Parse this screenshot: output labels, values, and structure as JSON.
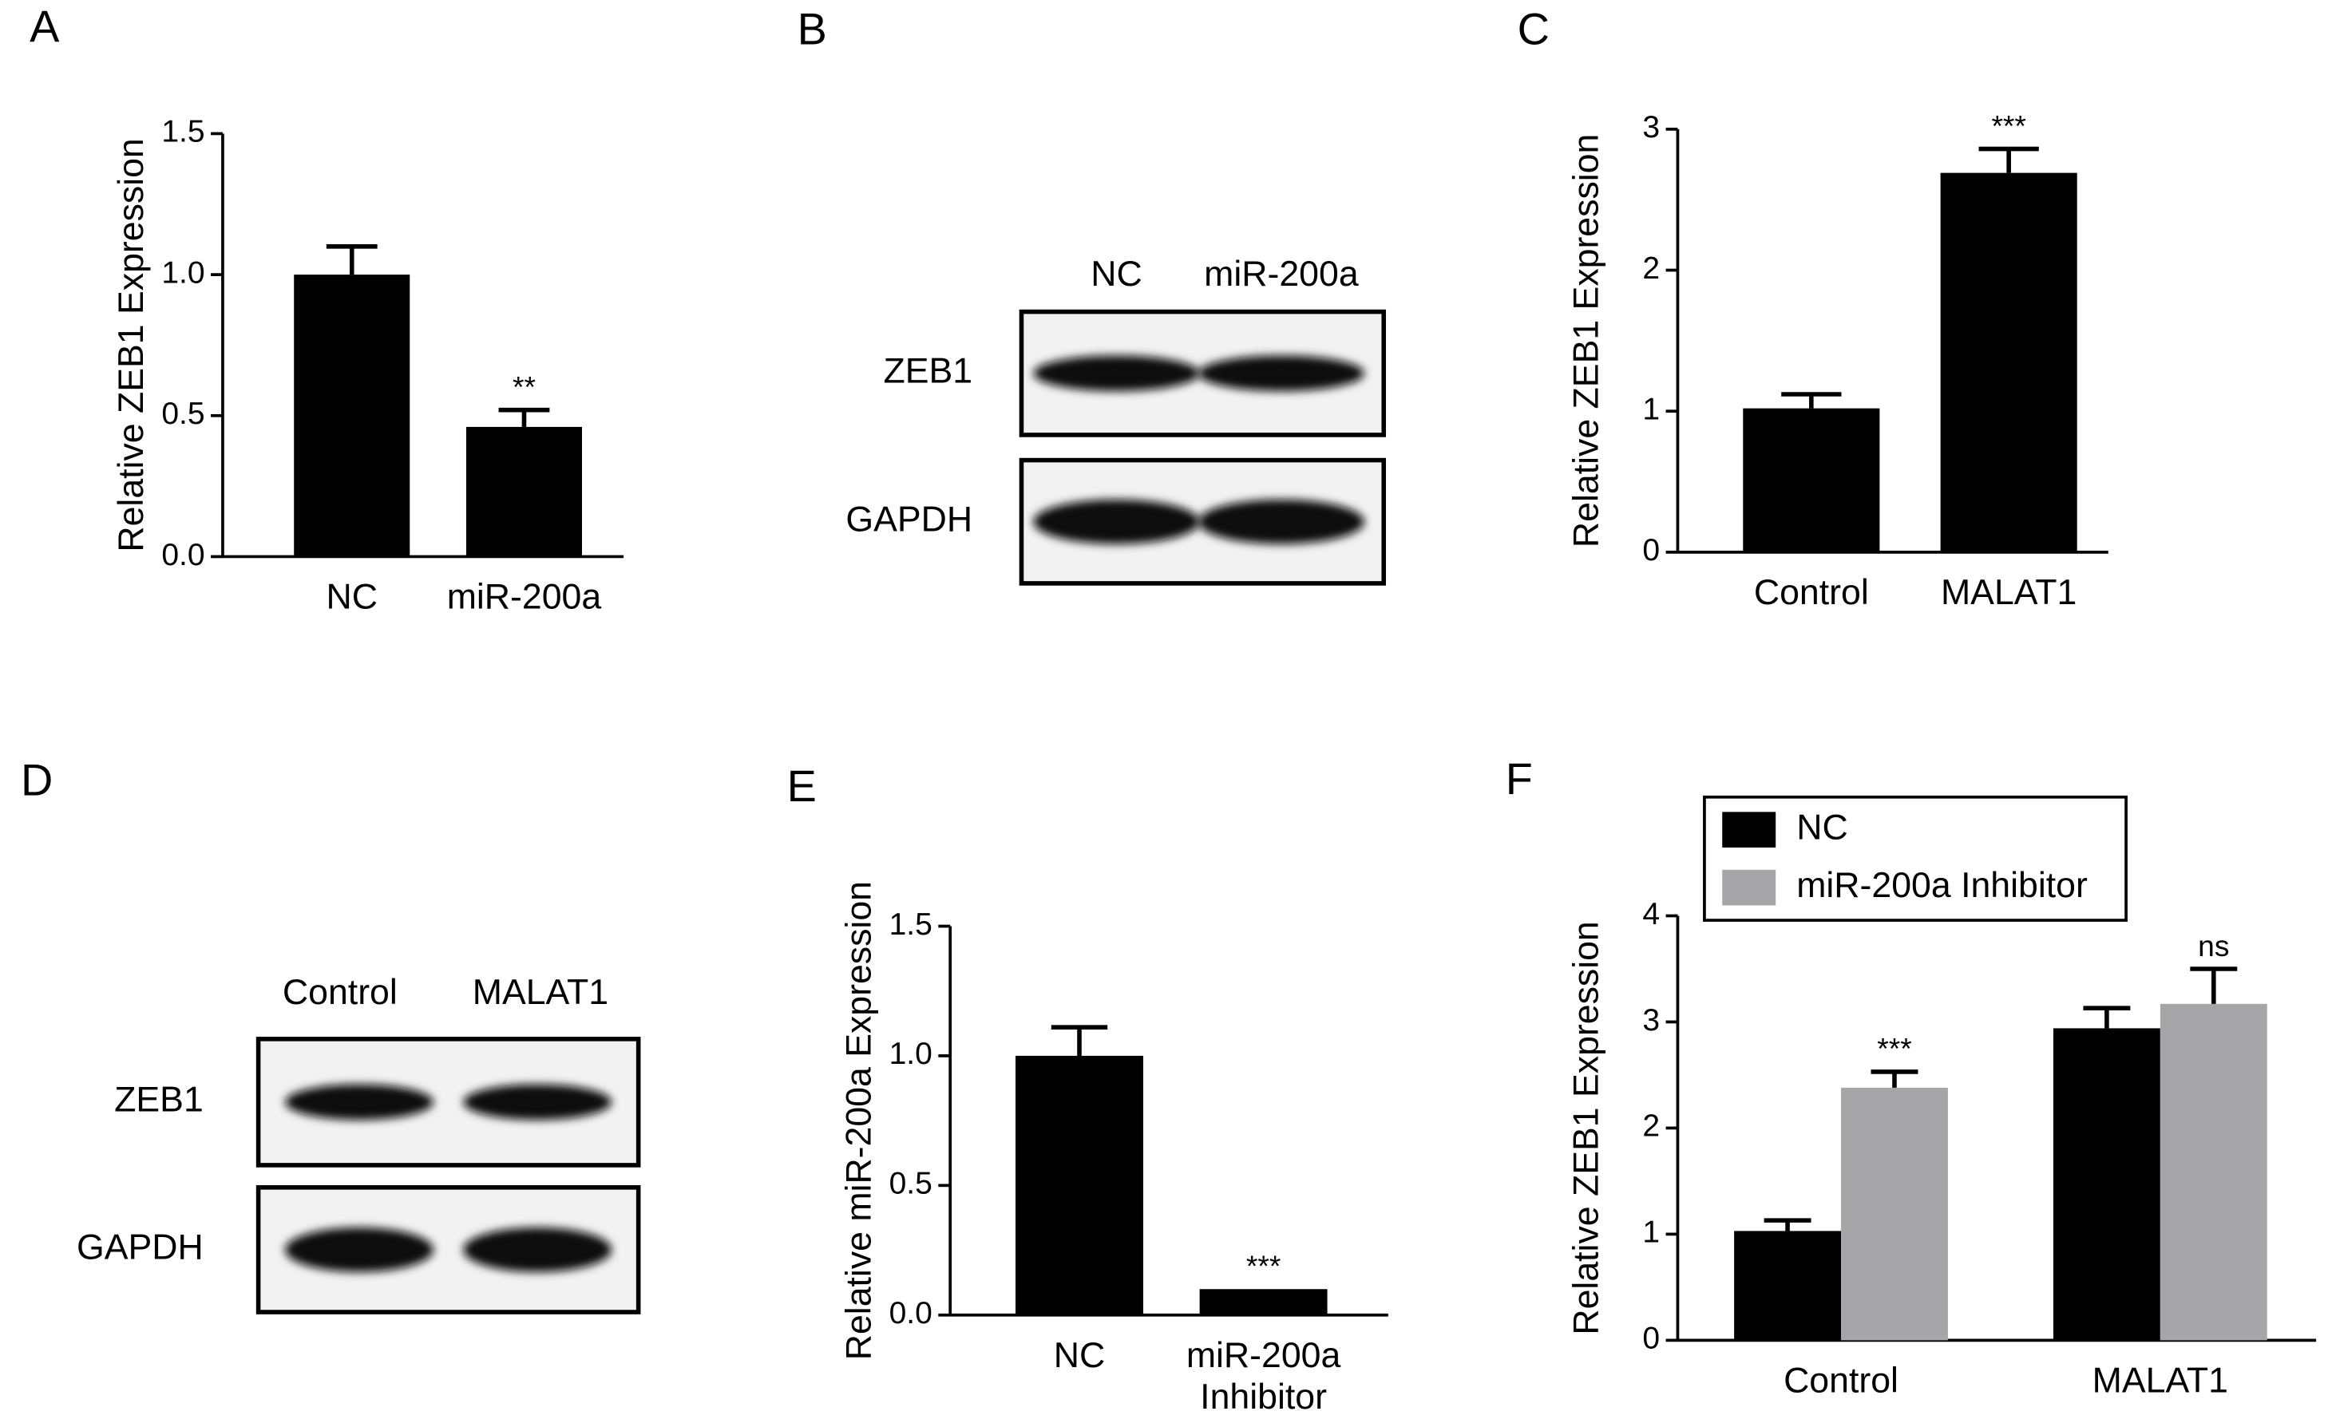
{
  "chart_data": [
    {
      "type": "bar",
      "panel": "A",
      "ylabel": "Relative ZEB1 Expression",
      "categories": [
        "NC",
        "miR-200a"
      ],
      "values": [
        1.0,
        0.46
      ],
      "errors": [
        0.1,
        0.06
      ],
      "annotations": [
        null,
        "**"
      ],
      "color": "#000000",
      "ylim": [
        0,
        1.5
      ],
      "yticks": [
        {
          "value": 0,
          "label": "0.0"
        },
        0.5,
        {
          "value": 1,
          "label": "1.0"
        },
        1.5
      ]
    },
    {
      "type": "blot",
      "panel": "B",
      "lanes": [
        "NC",
        "miR-200a"
      ],
      "rows": [
        "ZEB1",
        "GAPDH"
      ]
    },
    {
      "type": "bar",
      "panel": "C",
      "ylabel": "Relative ZEB1 Expression",
      "categories": [
        "Control",
        "MALAT1"
      ],
      "values": [
        1.02,
        2.69
      ],
      "errors": [
        0.1,
        0.17
      ],
      "annotations": [
        null,
        "***"
      ],
      "color": "#000000",
      "ylim": [
        0,
        3
      ],
      "yticks": [
        0,
        1,
        2,
        3
      ]
    },
    {
      "type": "blot",
      "panel": "D",
      "lanes": [
        "Control",
        "MALAT1"
      ],
      "rows": [
        "ZEB1",
        "GAPDH"
      ]
    },
    {
      "type": "bar",
      "panel": "E",
      "ylabel": "Relative miR-200a Expression",
      "categories": [
        "NC",
        "miR-200a Inhibitor"
      ],
      "values": [
        1.0,
        0.1
      ],
      "errors": [
        0.11,
        0
      ],
      "annotations": [
        null,
        "***"
      ],
      "color": "#000000",
      "ylim": [
        0,
        1.5
      ],
      "yticks": [
        {
          "value": 0,
          "label": "0.0"
        },
        0.5,
        {
          "value": 1,
          "label": "1.0"
        },
        1.5
      ]
    },
    {
      "type": "grouped-bar",
      "panel": "F",
      "ylabel": "Relative ZEB1 Expression",
      "categories": [
        "Control",
        "MALAT1"
      ],
      "legend": "upper left",
      "series": [
        {
          "name": "NC",
          "color": "#000000",
          "values": [
            1.03,
            2.94
          ],
          "errors": [
            0.1,
            0.19
          ],
          "annotations": [
            null,
            null
          ]
        },
        {
          "name": "miR-200a Inhibitor",
          "color": "#a6a6a8",
          "values": [
            2.38,
            3.17
          ],
          "errors": [
            0.15,
            0.33
          ],
          "annotations": [
            "***",
            "ns"
          ]
        }
      ],
      "ylim": [
        0,
        4
      ],
      "yticks": [
        0,
        1,
        2,
        3,
        4
      ]
    }
  ]
}
